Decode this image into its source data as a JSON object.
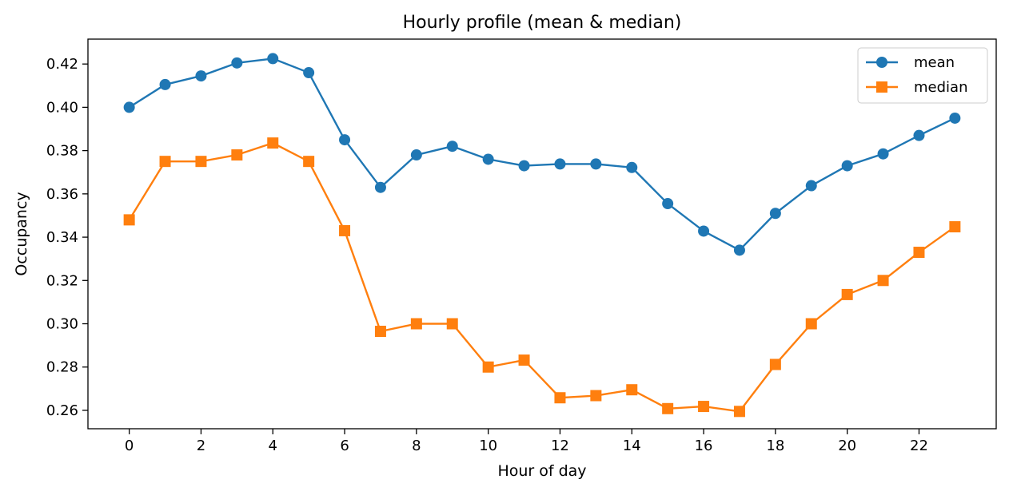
{
  "chart_data": {
    "type": "line",
    "title": "Hourly profile (mean & median)",
    "xlabel": "Hour of day",
    "ylabel": "Occupancy",
    "x": [
      0,
      1,
      2,
      3,
      4,
      5,
      6,
      7,
      8,
      9,
      10,
      11,
      12,
      13,
      14,
      15,
      16,
      17,
      18,
      19,
      20,
      21,
      22,
      23
    ],
    "xlim": [
      -1.15,
      24.15
    ],
    "ylim": [
      0.2515,
      0.4315
    ],
    "xticks": [
      0,
      2,
      4,
      6,
      8,
      10,
      12,
      14,
      16,
      18,
      20,
      22
    ],
    "xtick_labels": [
      "0",
      "2",
      "4",
      "6",
      "8",
      "10",
      "12",
      "14",
      "16",
      "18",
      "20",
      "22"
    ],
    "yticks": [
      0.26,
      0.28,
      0.3,
      0.32,
      0.34,
      0.36,
      0.38,
      0.4,
      0.42
    ],
    "ytick_labels": [
      "0.26",
      "0.28",
      "0.30",
      "0.32",
      "0.34",
      "0.36",
      "0.38",
      "0.40",
      "0.42"
    ],
    "grid": false,
    "legend": "top-right",
    "series": [
      {
        "name": "mean",
        "color": "#1f77b4",
        "marker": "circle",
        "values": [
          0.4,
          0.4105,
          0.4145,
          0.4205,
          0.4225,
          0.416,
          0.385,
          0.363,
          0.378,
          0.382,
          0.376,
          0.373,
          0.3738,
          0.3738,
          0.3722,
          0.3555,
          0.3428,
          0.334,
          0.351,
          0.3638,
          0.373,
          0.3785,
          0.387,
          0.395
        ]
      },
      {
        "name": "median",
        "color": "#ff7f0e",
        "marker": "square",
        "values": [
          0.348,
          0.375,
          0.375,
          0.378,
          0.3835,
          0.375,
          0.343,
          0.2965,
          0.3,
          0.3,
          0.28,
          0.2832,
          0.2658,
          0.2668,
          0.2695,
          0.2608,
          0.2618,
          0.2595,
          0.2812,
          0.3,
          0.3135,
          0.32,
          0.333,
          0.3448
        ]
      }
    ]
  }
}
